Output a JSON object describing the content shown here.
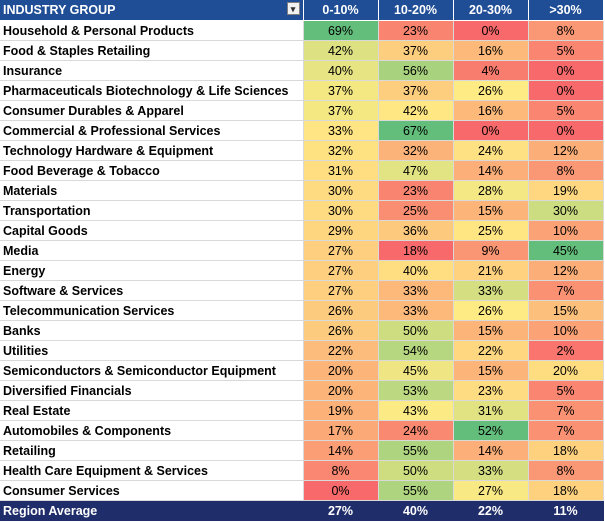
{
  "header": {
    "name": "INDUSTRY GROUP",
    "filter_icon": "dropdown-filter-icon",
    "columns": [
      "0-10%",
      "10-20%",
      "20-30%",
      ">30%"
    ]
  },
  "rows": [
    {
      "name": "Household & Personal Products",
      "values": [
        69,
        23,
        0,
        8
      ]
    },
    {
      "name": "Food & Staples Retailing",
      "values": [
        42,
        37,
        16,
        5
      ]
    },
    {
      "name": "Insurance",
      "values": [
        40,
        56,
        4,
        0
      ]
    },
    {
      "name": "Pharmaceuticals Biotechnology & Life Sciences",
      "values": [
        37,
        37,
        26,
        0
      ]
    },
    {
      "name": "Consumer Durables & Apparel",
      "values": [
        37,
        42,
        16,
        5
      ]
    },
    {
      "name": "Commercial & Professional Services",
      "values": [
        33,
        67,
        0,
        0
      ]
    },
    {
      "name": "Technology Hardware & Equipment",
      "values": [
        32,
        32,
        24,
        12
      ]
    },
    {
      "name": "Food Beverage & Tobacco",
      "values": [
        31,
        47,
        14,
        8
      ]
    },
    {
      "name": "Materials",
      "values": [
        30,
        23,
        28,
        19
      ]
    },
    {
      "name": "Transportation",
      "values": [
        30,
        25,
        15,
        30
      ]
    },
    {
      "name": "Capital Goods",
      "values": [
        29,
        36,
        25,
        10
      ]
    },
    {
      "name": "Media",
      "values": [
        27,
        18,
        9,
        45
      ]
    },
    {
      "name": "Energy",
      "values": [
        27,
        40,
        21,
        12
      ]
    },
    {
      "name": "Software & Services",
      "values": [
        27,
        33,
        33,
        7
      ]
    },
    {
      "name": "Telecommunication Services",
      "values": [
        26,
        33,
        26,
        15
      ]
    },
    {
      "name": "Banks",
      "values": [
        26,
        50,
        15,
        10
      ]
    },
    {
      "name": "Utilities",
      "values": [
        22,
        54,
        22,
        2
      ]
    },
    {
      "name": "Semiconductors & Semiconductor Equipment",
      "values": [
        20,
        45,
        15,
        20
      ]
    },
    {
      "name": "Diversified Financials",
      "values": [
        20,
        53,
        23,
        5
      ]
    },
    {
      "name": "Real Estate",
      "values": [
        19,
        43,
        31,
        7
      ]
    },
    {
      "name": "Automobiles & Components",
      "values": [
        17,
        24,
        52,
        7
      ]
    },
    {
      "name": "Retailing",
      "values": [
        14,
        55,
        14,
        18
      ]
    },
    {
      "name": "Health Care Equipment & Services",
      "values": [
        8,
        50,
        33,
        8
      ]
    },
    {
      "name": "Consumer Services",
      "values": [
        0,
        55,
        27,
        18
      ]
    }
  ],
  "footer": {
    "name": "Region Average",
    "values": [
      27,
      40,
      22,
      11
    ]
  },
  "colors": {
    "header_bg": "#1f4e96",
    "footer_bg": "#1f2d6a",
    "scale_low": "#f8696b",
    "scale_mid": "#ffeb84",
    "scale_high": "#63be7b"
  }
}
